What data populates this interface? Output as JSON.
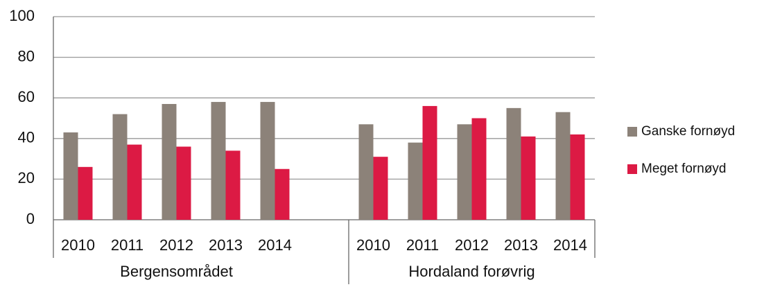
{
  "chart_data": {
    "type": "bar",
    "categories": [
      "2010",
      "2011",
      "2012",
      "2013",
      "2014",
      null,
      "2010",
      "2011",
      "2012",
      "2013",
      "2014"
    ],
    "groups": [
      "Bergensområdet",
      "Hordaland forøvrig"
    ],
    "series": [
      {
        "name": "Ganske fornøyd",
        "color": "#8c8279",
        "values": [
          43,
          52,
          57,
          58,
          58,
          null,
          47,
          38,
          47,
          55,
          53
        ]
      },
      {
        "name": "Meget fornøyd",
        "color": "#dc1a44",
        "values": [
          26,
          37,
          36,
          34,
          25,
          null,
          31,
          56,
          50,
          41,
          42
        ]
      }
    ],
    "ylim": [
      0,
      100
    ],
    "yticks": [
      0,
      20,
      40,
      60,
      80,
      100
    ],
    "grid": true,
    "legend": "right"
  }
}
